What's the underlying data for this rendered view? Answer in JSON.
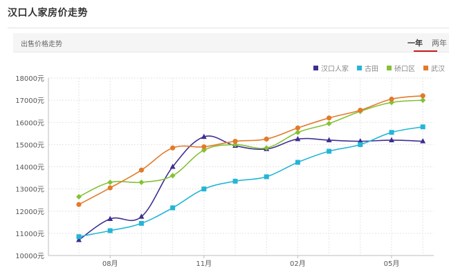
{
  "header": {
    "title": "汉口人家房价走势"
  },
  "tabs": {
    "section_label": "出售价格走势",
    "items": [
      {
        "label": "一年",
        "active": true
      },
      {
        "label": "两年",
        "active": false
      }
    ]
  },
  "colors": {
    "hankou": "#3d2f8f",
    "gutian": "#24b5d7",
    "qiaokou": "#84c134",
    "wuhan": "#e27a2a"
  },
  "chart_data": {
    "type": "line",
    "title": "",
    "xlabel": "",
    "ylabel": "",
    "ylim": [
      10000,
      18000
    ],
    "yticks": [
      10000,
      11000,
      12000,
      13000,
      14000,
      15000,
      16000,
      17000,
      18000
    ],
    "ytick_labels": [
      "10000元",
      "11000元",
      "12000元",
      "13000元",
      "14000元",
      "15000元",
      "16000元",
      "17000元",
      "18000元"
    ],
    "x": [
      "2019-07",
      "2019-08",
      "2019-09",
      "2019-10",
      "2019-11",
      "2019-12",
      "2020-01",
      "2020-02",
      "2020-03",
      "2020-04",
      "2020-05",
      "2020-06"
    ],
    "xtick_labels": [
      {
        "x": "2019-08",
        "label": "08月"
      },
      {
        "x": "2019-11",
        "label": "11月"
      },
      {
        "x": "2020-02",
        "label": "02月"
      },
      {
        "x": "2020-05",
        "label": "05月"
      }
    ],
    "grid": true,
    "legend_position": "top-right",
    "series": [
      {
        "name": "汉口人家",
        "marker": "triangle",
        "values": [
          10700,
          11650,
          11750,
          14000,
          15350,
          14950,
          14800,
          15250,
          15200,
          15150,
          15200,
          15150
        ]
      },
      {
        "name": "古田",
        "marker": "square",
        "values": [
          10850,
          11120,
          11450,
          12150,
          13000,
          13350,
          13550,
          14200,
          14700,
          15000,
          15550,
          15800
        ]
      },
      {
        "name": "硚口区",
        "marker": "diamond",
        "values": [
          12650,
          13300,
          13300,
          13600,
          14750,
          15000,
          14850,
          15550,
          15950,
          16500,
          16900,
          17000
        ]
      },
      {
        "name": "武汉",
        "marker": "circle",
        "values": [
          12300,
          13050,
          13850,
          14850,
          14900,
          15150,
          15250,
          15750,
          16200,
          16550,
          17050,
          17200
        ]
      }
    ]
  }
}
